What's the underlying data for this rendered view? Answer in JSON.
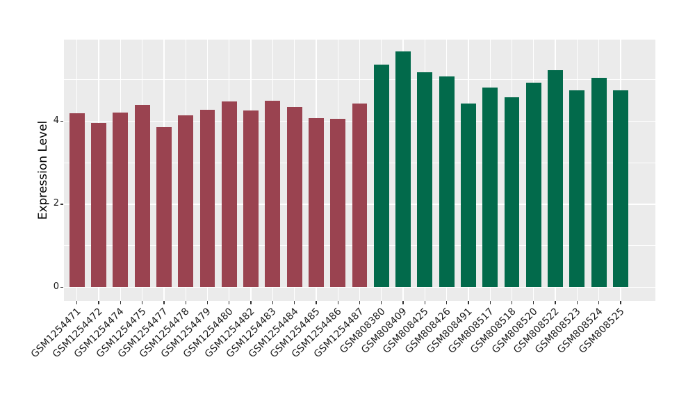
{
  "chart_data": {
    "type": "bar",
    "ylabel": "Expression Level",
    "yticks": [
      0,
      2,
      4
    ],
    "yticks_minor": [
      1,
      3,
      5
    ],
    "ylim": [
      0,
      5.95
    ],
    "grid": "on",
    "panel_bg": "#EBEBEB",
    "grid_color": "#FFFFFF",
    "tick_color": "#333333",
    "bars": [
      {
        "label": "GSM1254471",
        "value": 4.18,
        "color": "#9A4350"
      },
      {
        "label": "GSM1254472",
        "value": 3.95,
        "color": "#9A4350"
      },
      {
        "label": "GSM1254474",
        "value": 4.19,
        "color": "#9A4350"
      },
      {
        "label": "GSM1254475",
        "value": 4.38,
        "color": "#9A4350"
      },
      {
        "label": "GSM1254477",
        "value": 3.85,
        "color": "#9A4350"
      },
      {
        "label": "GSM1254478",
        "value": 4.13,
        "color": "#9A4350"
      },
      {
        "label": "GSM1254479",
        "value": 4.26,
        "color": "#9A4350"
      },
      {
        "label": "GSM1254480",
        "value": 4.47,
        "color": "#9A4350"
      },
      {
        "label": "GSM1254482",
        "value": 4.24,
        "color": "#9A4350"
      },
      {
        "label": "GSM1254483",
        "value": 4.48,
        "color": "#9A4350"
      },
      {
        "label": "GSM1254484",
        "value": 4.33,
        "color": "#9A4350"
      },
      {
        "label": "GSM1254485",
        "value": 4.07,
        "color": "#9A4350"
      },
      {
        "label": "GSM1254486",
        "value": 4.05,
        "color": "#9A4350"
      },
      {
        "label": "GSM1254487",
        "value": 4.41,
        "color": "#9A4350"
      },
      {
        "label": "GSM808380",
        "value": 5.35,
        "color": "#026A4B"
      },
      {
        "label": "GSM808409",
        "value": 5.67,
        "color": "#026A4B"
      },
      {
        "label": "GSM808425",
        "value": 5.16,
        "color": "#026A4B"
      },
      {
        "label": "GSM808426",
        "value": 5.07,
        "color": "#026A4B"
      },
      {
        "label": "GSM808491",
        "value": 4.41,
        "color": "#026A4B"
      },
      {
        "label": "GSM808517",
        "value": 4.8,
        "color": "#026A4B"
      },
      {
        "label": "GSM808518",
        "value": 4.57,
        "color": "#026A4B"
      },
      {
        "label": "GSM808520",
        "value": 4.91,
        "color": "#026A4B"
      },
      {
        "label": "GSM808522",
        "value": 5.22,
        "color": "#026A4B"
      },
      {
        "label": "GSM808523",
        "value": 4.73,
        "color": "#026A4B"
      },
      {
        "label": "GSM808524",
        "value": 5.04,
        "color": "#026A4B"
      },
      {
        "label": "GSM808525",
        "value": 4.73,
        "color": "#026A4B"
      }
    ]
  }
}
